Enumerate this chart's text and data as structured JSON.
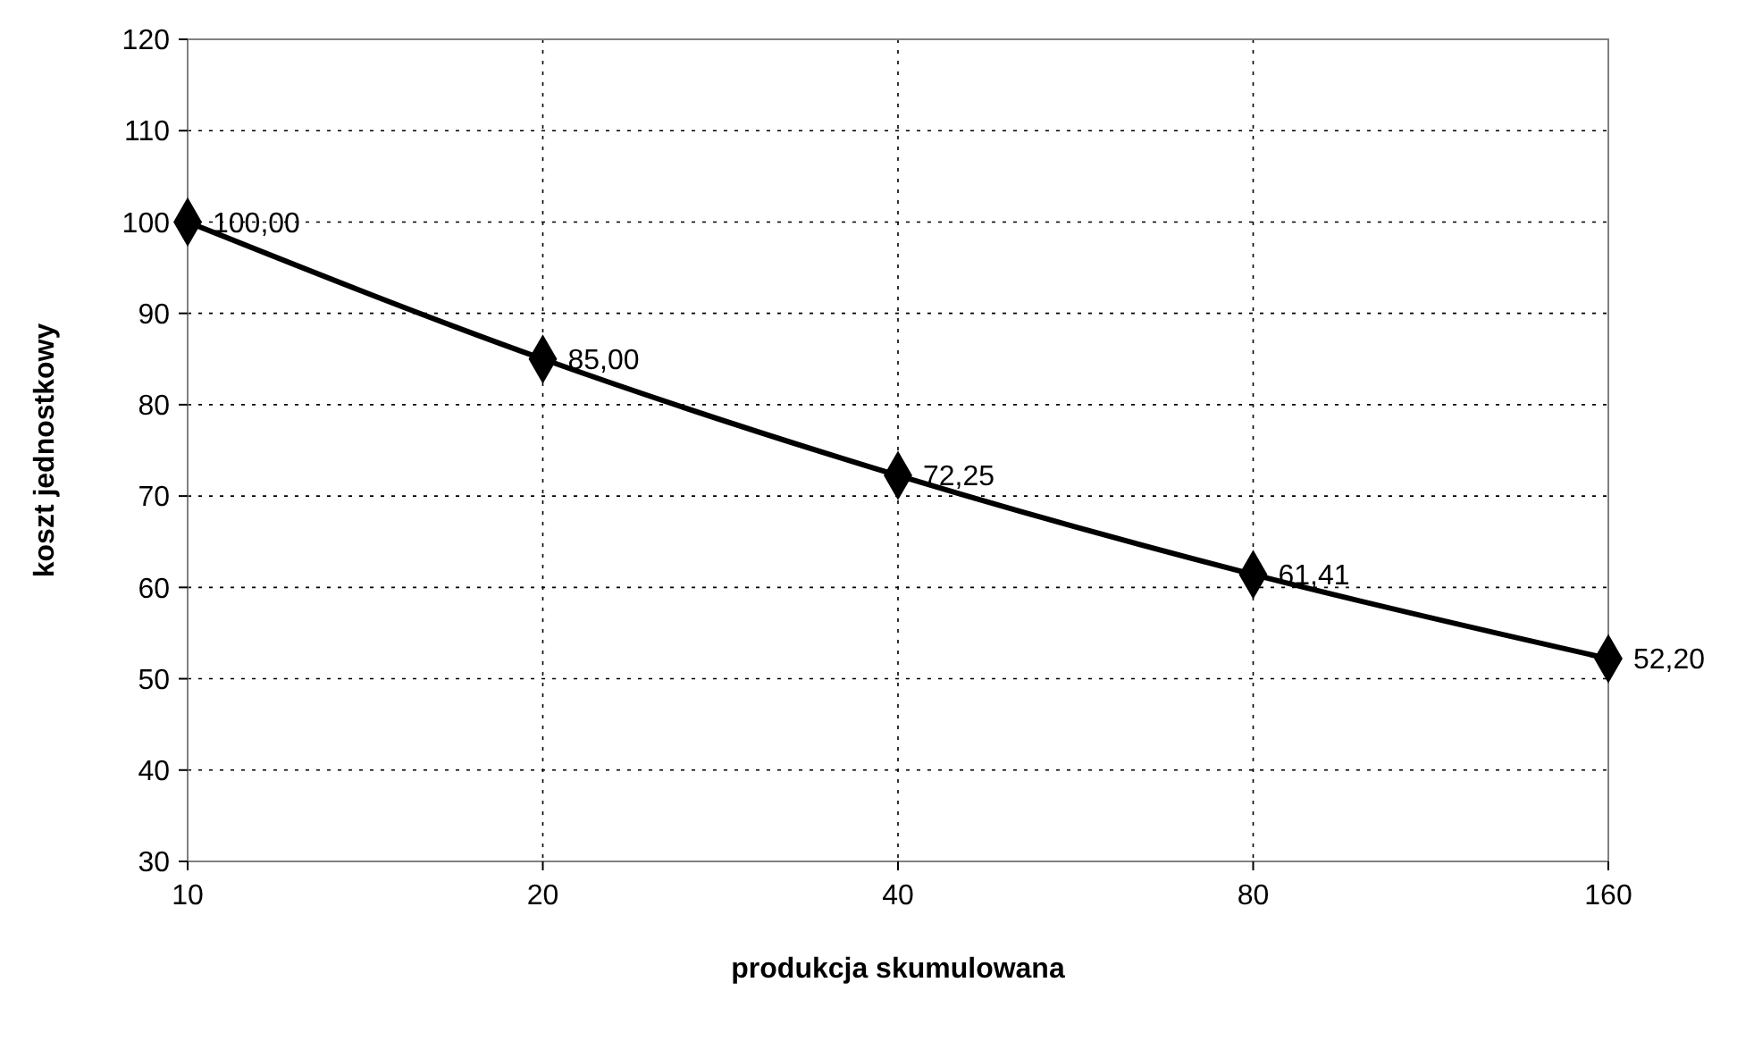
{
  "chart_data": {
    "type": "line",
    "xlabel": "produkcja skumulowana",
    "ylabel": "koszt jednostkowy",
    "x": [
      10,
      20,
      40,
      80,
      160
    ],
    "series": [
      {
        "color": "#000000",
        "values": [
          100,
          85,
          72.25,
          61.41,
          52.2
        ],
        "value_labels": [
          "100,00",
          "85,00",
          "72,25",
          "61,41",
          "52,20"
        ]
      }
    ],
    "log": "x",
    "xlim": [
      10,
      160
    ],
    "xticks": [
      10,
      20,
      40,
      80,
      160
    ],
    "ylim": [
      30,
      120
    ],
    "yticks": [
      30,
      40,
      50,
      60,
      70,
      80,
      90,
      100,
      110,
      120
    ],
    "grid": true,
    "marker": "diamond",
    "line_style": "solid"
  }
}
